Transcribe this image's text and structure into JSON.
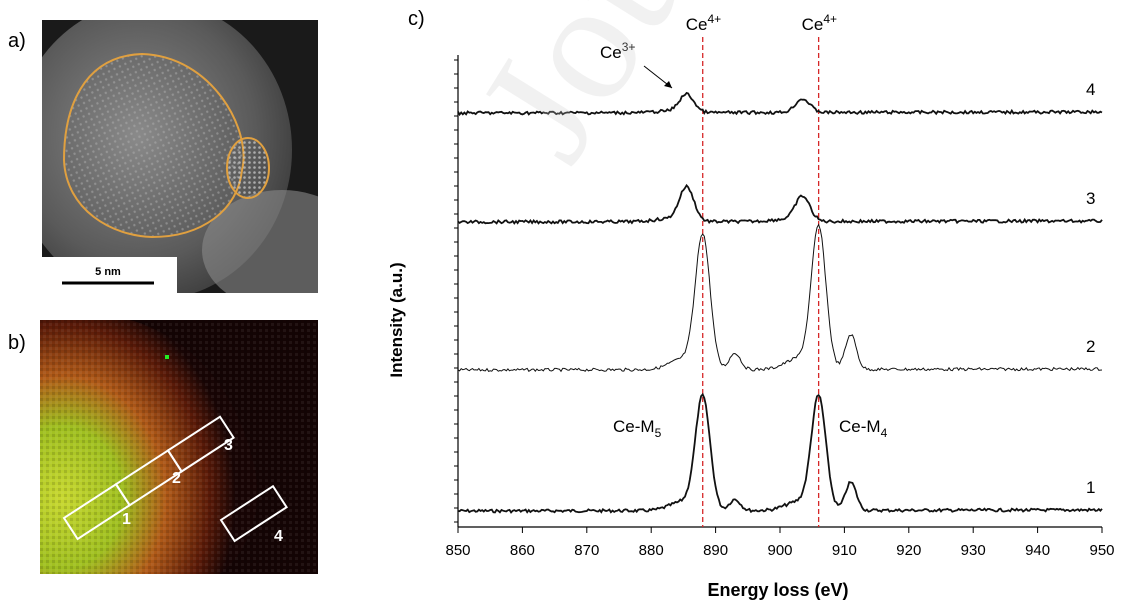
{
  "panels": {
    "a": {
      "label": "a)",
      "scalebar_text": "5 nm",
      "outline_color": "#e0a040"
    },
    "b": {
      "label": "b)",
      "region_labels": [
        "1",
        "2",
        "3",
        "4"
      ]
    },
    "c": {
      "label": "c)"
    }
  },
  "watermark": "Journa",
  "chart_data": {
    "type": "line",
    "xlabel": "Energy loss (eV)",
    "ylabel": "Intensity (a.u.)",
    "xlim": [
      850,
      950
    ],
    "x_ticks": [
      850,
      860,
      870,
      880,
      890,
      900,
      910,
      920,
      930,
      940,
      950
    ],
    "y_ticks_shown": false,
    "series": [
      {
        "name": "1",
        "peaks": [
          {
            "x": 888,
            "height": 1.0
          },
          {
            "x": 893,
            "height": 0.1
          },
          {
            "x": 906,
            "height": 1.0
          },
          {
            "x": 911,
            "height": 0.25
          }
        ]
      },
      {
        "name": "2",
        "peaks": [
          {
            "x": 888,
            "height": 0.95
          },
          {
            "x": 893,
            "height": 0.12
          },
          {
            "x": 906,
            "height": 1.0
          },
          {
            "x": 911,
            "height": 0.25
          }
        ]
      },
      {
        "name": "3",
        "peaks": [
          {
            "x": 885.5,
            "height": 0.55
          },
          {
            "x": 903.5,
            "height": 0.4
          }
        ]
      },
      {
        "name": "4",
        "peaks": [
          {
            "x": 885.5,
            "height": 0.4
          },
          {
            "x": 903.5,
            "height": 0.3
          }
        ]
      }
    ],
    "reference_lines": [
      {
        "x": 888,
        "label": "Ce4+",
        "color": "#d62728"
      },
      {
        "x": 906,
        "label": "Ce4+",
        "color": "#d62728"
      }
    ],
    "annotations": {
      "ce3": "Ce3+",
      "m5": "Ce-M5",
      "m4": "Ce-M4"
    }
  }
}
